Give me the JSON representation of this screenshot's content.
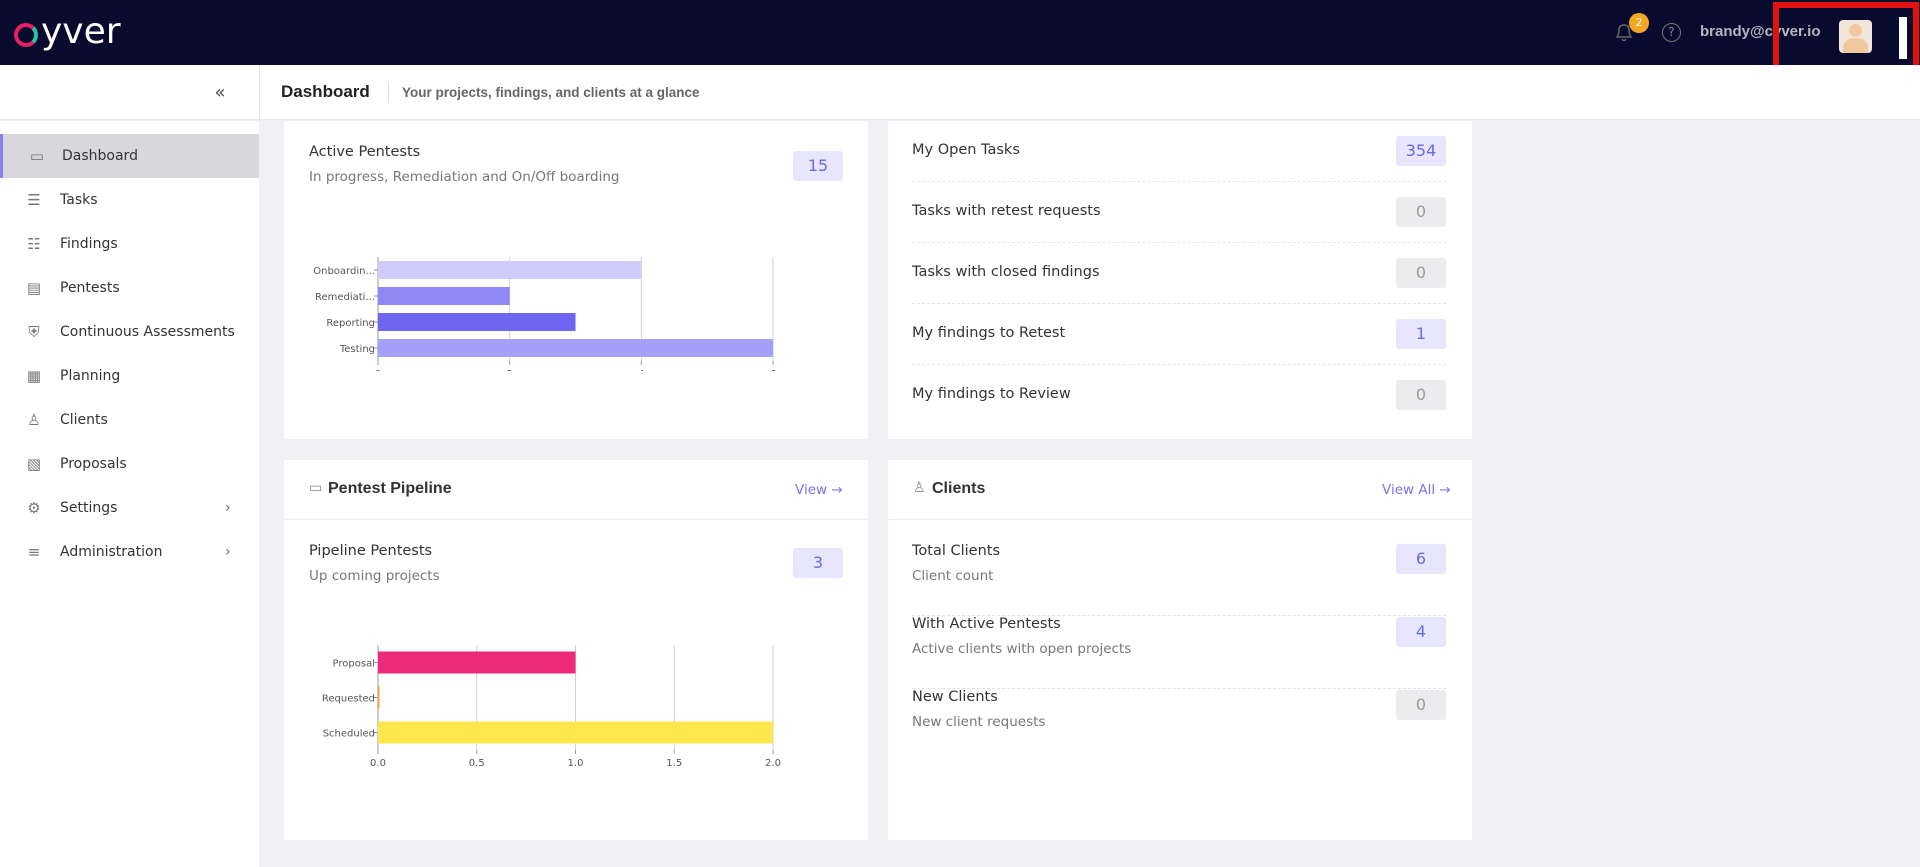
{
  "topbar": {
    "logo_text": "yver",
    "notification_count": "2",
    "help_label": "?",
    "user_email": "brandy@cyver.io",
    "icons": [
      "bell-icon",
      "help-icon",
      "avatar"
    ]
  },
  "subheader": {
    "title": "Dashboard",
    "subtitle": "Your projects, findings, and clients at a glance",
    "collapse_label": "«"
  },
  "sidebar": {
    "items": [
      {
        "label": "Dashboard",
        "icon": "dashboard-icon",
        "glyph": "▭",
        "active": true
      },
      {
        "label": "Tasks",
        "icon": "tasks-icon",
        "glyph": "☰"
      },
      {
        "label": "Findings",
        "icon": "findings-icon",
        "glyph": "☷"
      },
      {
        "label": "Pentests",
        "icon": "pentests-icon",
        "glyph": "▤"
      },
      {
        "label": "Continuous Assessments",
        "icon": "shield-icon",
        "glyph": "⛨"
      },
      {
        "label": "Planning",
        "icon": "calendar-icon",
        "glyph": "▦"
      },
      {
        "label": "Clients",
        "icon": "clients-icon",
        "glyph": "♙"
      },
      {
        "label": "Proposals",
        "icon": "proposals-icon",
        "glyph": "▧"
      },
      {
        "label": "Settings",
        "icon": "gear-icon",
        "glyph": "⚙",
        "chevron": "›"
      },
      {
        "label": "Administration",
        "icon": "sliders-icon",
        "glyph": "≡",
        "chevron": "›"
      }
    ]
  },
  "active_pentests": {
    "title": "Active Pentests",
    "subtitle": "In progress, Remediation and On/Off boarding",
    "count": "15"
  },
  "tasks": {
    "rows": [
      {
        "label": "My Open Tasks",
        "count": "354",
        "zero": false
      },
      {
        "label": "Tasks with retest requests",
        "count": "0",
        "zero": true
      },
      {
        "label": "Tasks with closed findings",
        "count": "0",
        "zero": true
      },
      {
        "label": "My findings to Retest",
        "count": "1",
        "zero": false
      },
      {
        "label": "My findings to Review",
        "count": "0",
        "zero": true
      }
    ]
  },
  "pipeline": {
    "header": "Pentest Pipeline",
    "view_label": "View →",
    "title": "Pipeline Pentests",
    "subtitle": "Up coming projects",
    "count": "3"
  },
  "clients": {
    "header": "Clients",
    "view_label": "View All →",
    "rows": [
      {
        "title": "Total Clients",
        "sub": "Client count",
        "count": "6",
        "zero": false
      },
      {
        "title": "With Active Pentests",
        "sub": "Active clients with open projects",
        "count": "4",
        "zero": false
      },
      {
        "title": "New Clients",
        "sub": "New client requests",
        "count": "0",
        "zero": true
      }
    ]
  },
  "chart_data": [
    {
      "type": "bar",
      "orientation": "horizontal",
      "categories": [
        "Onboardin...",
        "Remediati...",
        "Reporting",
        "Testing"
      ],
      "values": [
        4,
        2,
        3,
        6
      ],
      "colors": [
        "#cfcbfb",
        "#8f89f5",
        "#6e66f0",
        "#a49ff7"
      ],
      "xlim": [
        0,
        6
      ],
      "xticks": [
        "0",
        "2",
        "4",
        "6"
      ],
      "grid": true
    },
    {
      "type": "bar",
      "orientation": "horizontal",
      "categories": [
        "Proposal",
        "Requested",
        "Scheduled"
      ],
      "values": [
        1,
        0,
        2
      ],
      "colors": [
        "#ee2a7b",
        "#f5a623",
        "#fde74c"
      ],
      "xlim": [
        0,
        2
      ],
      "xticks": [
        "0.0",
        "0.5",
        "1.0",
        "1.5",
        "2.0"
      ],
      "grid": true
    }
  ]
}
